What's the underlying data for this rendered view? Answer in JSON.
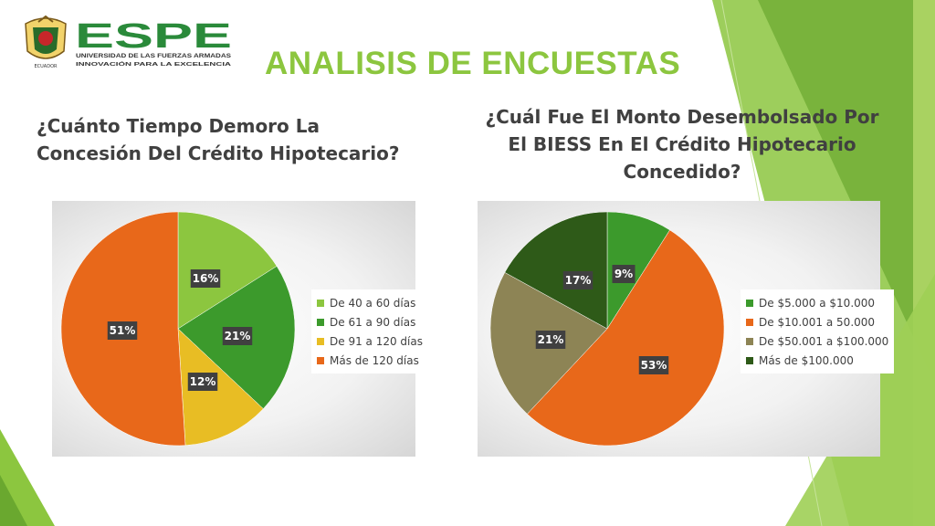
{
  "header": {
    "logo_text": "ESPE",
    "logo_subtitle": "UNIVERSIDAD DE LAS FUERZAS ARMADAS",
    "logo_tagline": "INNOVACIÓN PARA LA EXCELENCIA",
    "seal_text": "ECUADOR",
    "title": "ANALISIS DE ENCUESTAS"
  },
  "questions": {
    "left_line1": "¿Cuánto Tiempo Demoro La",
    "left_line2": "Concesión Del Crédito Hipotecario?",
    "right_line1": "¿Cuál Fue El Monto Desembolsado Por",
    "right_line2": "El BIESS En El Crédito Hipotecario",
    "right_line3": "Concedido?"
  },
  "chart_data": [
    {
      "type": "pie",
      "title": "",
      "categories": [
        "De 40 a 60 días",
        "De 61 a 90 días",
        "De 91 a 120 días",
        "Más de 120 días"
      ],
      "values": [
        16,
        21,
        12,
        51
      ],
      "labels": [
        "16%",
        "21%",
        "12%",
        "51%"
      ],
      "colors": [
        "#8cc63f",
        "#3c9a2c",
        "#e8bd24",
        "#e8681a"
      ],
      "legend_position": "right"
    },
    {
      "type": "pie",
      "title": "",
      "categories": [
        "De $5.000 a $10.000",
        "De $10.001 a 50.000",
        "De $50.001 a $100.000",
        "Más de $100.000"
      ],
      "values": [
        9,
        53,
        21,
        17
      ],
      "labels": [
        "9%",
        "53%",
        "21%",
        "17%"
      ],
      "colors": [
        "#3c9a2c",
        "#e8681a",
        "#8d8455",
        "#2e5a18"
      ],
      "legend_position": "right"
    }
  ]
}
